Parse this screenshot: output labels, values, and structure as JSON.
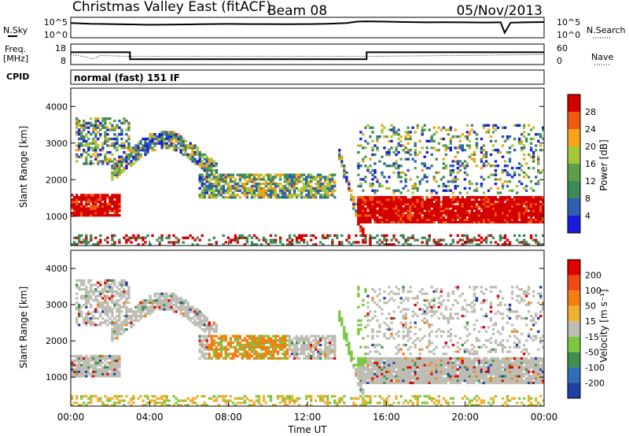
{
  "header": {
    "title": "Christmas Valley East (fitACF)",
    "beam": "Beam 08",
    "date": "05/Nov/2013"
  },
  "cpid_label": "CPID",
  "cpid_value": "normal (fast) 151 IF",
  "chart_data": [
    {
      "type": "line",
      "name": "noise-panel",
      "left_label": "N.Sky",
      "right_label": "N.Search",
      "left_ticks": [
        "10^5",
        "10^0"
      ],
      "right_ticks": [
        "10^5",
        "10^0"
      ],
      "x": [
        0,
        0.5,
        1,
        2,
        3,
        4,
        5,
        6,
        7,
        8,
        9,
        10,
        11,
        12,
        13,
        14,
        14.5,
        15,
        16,
        17,
        18,
        19,
        20,
        21,
        21.8,
        22,
        22.3,
        23,
        24
      ],
      "y_log": [
        3.8,
        3.7,
        3.6,
        3.5,
        3.4,
        3.3,
        3.35,
        3.4,
        3.5,
        3.55,
        3.5,
        3.5,
        3.45,
        3.5,
        3.6,
        3.8,
        4.2,
        4.3,
        4.2,
        4.1,
        4.0,
        4.05,
        4.0,
        3.95,
        4.0,
        1.0,
        3.9,
        4.0,
        4.1
      ],
      "ylim": [
        0,
        5
      ]
    },
    {
      "type": "line",
      "name": "freq-panel",
      "left_label": "Freq.",
      "left_unit": "[MHz]",
      "right_label": "Nave",
      "left_ticks": [
        "18",
        "8"
      ],
      "right_ticks": [
        "60",
        "0"
      ],
      "freq_x": [
        0,
        3,
        3,
        15,
        15,
        24
      ],
      "freq_y": [
        14.2,
        14.2,
        10.2,
        10.2,
        14.2,
        14.2
      ],
      "nave_x": [
        0,
        0.7,
        1.1,
        1.5,
        3,
        15,
        24
      ],
      "nave_y": [
        29,
        22,
        14,
        26,
        23,
        23,
        29
      ],
      "ylim": [
        8,
        18
      ],
      "nave_lim": [
        0,
        60
      ]
    },
    {
      "type": "heatmap",
      "name": "power-panel",
      "ylabel": "Slant Range [km]",
      "y_ticks": [
        "1000",
        "2000",
        "3000",
        "4000"
      ],
      "ylim": [
        200,
        4500
      ],
      "xlim": [
        0,
        24
      ],
      "colorbar_label": "Power [dB]",
      "colorbar_ticks": [
        "28",
        "24",
        "20",
        "16",
        "12",
        "8",
        "4"
      ],
      "colorbar_colors": [
        "#1a1adf",
        "#2e5fb2",
        "#3f8a5a",
        "#5f9f4c",
        "#a6c63a",
        "#f7a21a",
        "#ef5a12",
        "#d40000"
      ],
      "levels": [
        0,
        4,
        8,
        12,
        16,
        20,
        24,
        28
      ]
    },
    {
      "type": "heatmap",
      "name": "velocity-panel",
      "ylabel": "Slant Range [km]",
      "y_ticks": [
        "1000",
        "2000",
        "3000",
        "4000"
      ],
      "ylim": [
        200,
        4500
      ],
      "xlim": [
        0,
        24
      ],
      "colorbar_label": "Velocity [m s⁻¹]",
      "colorbar_ticks": [
        "200",
        "100",
        "50",
        "15",
        "-15",
        "-50",
        "-100",
        "-200"
      ],
      "colorbar_colors": [
        "#1e3fa6",
        "#2f6fb5",
        "#3f8f4a",
        "#7dc843",
        "#bdbdb3",
        "#f0b030",
        "#f57f12",
        "#ee4a12",
        "#e00000"
      ],
      "x_tick_labels": [
        "00:00",
        "04:00",
        "08:00",
        "12:00",
        "16:00",
        "20:00",
        "00:00"
      ],
      "xlabel": "Time UT"
    }
  ]
}
